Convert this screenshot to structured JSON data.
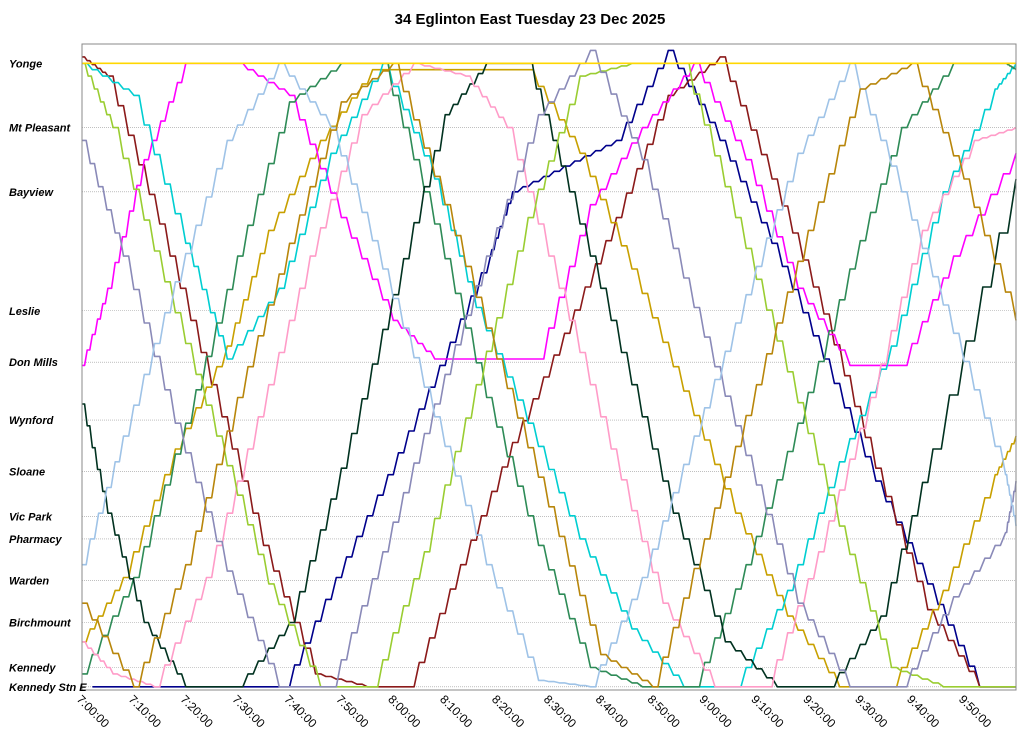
{
  "chart_data": {
    "type": "line",
    "title": "34 Eglinton East Tuesday 23 Dec 2025",
    "xlabel": "",
    "ylabel": "",
    "x_ticks": [
      "7:00:00",
      "7:10:00",
      "7:20:00",
      "7:30:00",
      "7:40:00",
      "7:50:00",
      "8:00:00",
      "8:10:00",
      "8:20:00",
      "8:30:00",
      "8:40:00",
      "8:50:00",
      "9:00:00",
      "9:10:00",
      "9:20:00",
      "9:30:00",
      "9:40:00",
      "9:50:00"
    ],
    "xlim": [
      "7:00:00",
      "10:00:00"
    ],
    "stops": [
      {
        "name": "Yonge",
        "dist": 0.0
      },
      {
        "name": "Mt Pleasant",
        "dist": 1.0
      },
      {
        "name": "Bayview",
        "dist": 2.0
      },
      {
        "name": "Leslie",
        "dist": 3.85
      },
      {
        "name": "Don Mills",
        "dist": 4.65
      },
      {
        "name": "Wynford",
        "dist": 5.55
      },
      {
        "name": "Sloane",
        "dist": 6.35
      },
      {
        "name": "Vic Park",
        "dist": 7.05
      },
      {
        "name": "Pharmacy",
        "dist": 7.4
      },
      {
        "name": "Warden",
        "dist": 8.05
      },
      {
        "name": "Birchmount",
        "dist": 8.7
      },
      {
        "name": "Kennedy",
        "dist": 9.4
      },
      {
        "name": "Kennedy Stn E",
        "dist": 9.7
      }
    ],
    "ylim": [
      9.75,
      -0.3
    ],
    "grid": true,
    "legend": "none",
    "series": [
      {
        "color": "#00008b",
        "x": [
          "7:02",
          "7:12",
          "7:22",
          "7:32",
          "7:39",
          "7:49",
          "7:59",
          "8:09",
          "8:19",
          "8:23",
          "8:33",
          "8:43",
          "8:53",
          "9:03",
          "9:13",
          "9:23",
          "9:33",
          "9:43",
          "9:53",
          "10:00"
        ],
        "y": [
          9.7,
          9.7,
          9.7,
          9.7,
          9.7,
          8.0,
          6.4,
          4.7,
          2.9,
          2.0,
          1.6,
          1.2,
          -0.2,
          1.2,
          2.8,
          4.6,
          6.5,
          8.1,
          9.7,
          9.7
        ]
      },
      {
        "color": "#8b1a1a",
        "x": [
          "7:00",
          "7:05",
          "7:15",
          "7:25",
          "7:35",
          "7:45",
          "7:55",
          "8:03",
          "8:13",
          "8:23",
          "8:33",
          "8:43",
          "8:53",
          "9:03",
          "9:13",
          "9:23",
          "9:33",
          "9:43",
          "9:53",
          "10:00"
        ],
        "y": [
          -0.1,
          0.2,
          2.5,
          5.0,
          7.5,
          9.5,
          9.7,
          9.7,
          7.8,
          5.9,
          4.2,
          2.4,
          0.5,
          -0.1,
          1.8,
          3.9,
          6.3,
          8.5,
          9.7,
          9.7
        ]
      },
      {
        "color": "#c8a000",
        "x": [
          "7:00",
          "7:08",
          "7:18",
          "7:28",
          "7:36",
          "7:46",
          "7:56",
          "8:06",
          "8:16",
          "8:26",
          "8:36",
          "8:46",
          "8:56",
          "9:06",
          "9:16",
          "9:26",
          "9:36",
          "9:46",
          "9:56",
          "10:00"
        ],
        "y": [
          9.0,
          8.0,
          6.0,
          4.4,
          2.6,
          1.2,
          0.1,
          0.1,
          0.1,
          0.1,
          1.4,
          3.2,
          5.1,
          7.0,
          8.6,
          9.7,
          9.7,
          8.2,
          6.4,
          5.8
        ]
      },
      {
        "color": "#ff00ff",
        "x": [
          "7:00",
          "7:05",
          "7:12",
          "7:20",
          "7:30",
          "7:40",
          "7:50",
          "8:00",
          "8:08",
          "8:18",
          "8:28",
          "8:38",
          "8:48",
          "8:58",
          "9:08",
          "9:18",
          "9:28",
          "9:38",
          "9:48",
          "10:00"
        ],
        "y": [
          4.7,
          3.5,
          1.5,
          0.0,
          0.0,
          0.5,
          2.4,
          4.0,
          4.6,
          4.6,
          4.6,
          2.2,
          1.0,
          0.0,
          1.5,
          3.5,
          4.7,
          4.7,
          3.0,
          1.4
        ]
      },
      {
        "color": "#00ced1",
        "x": [
          "7:00",
          "7:10",
          "7:20",
          "7:28",
          "7:38",
          "7:48",
          "7:58",
          "8:08",
          "8:16",
          "8:26",
          "8:36",
          "8:46",
          "8:56",
          "9:06",
          "9:16",
          "9:26",
          "9:36",
          "9:46",
          "9:56",
          "10:00"
        ],
        "y": [
          0.0,
          0.5,
          2.8,
          4.6,
          3.5,
          1.4,
          0.0,
          1.8,
          3.8,
          5.6,
          7.4,
          8.8,
          9.7,
          9.7,
          8.2,
          6.2,
          4.4,
          2.0,
          0.4,
          0.0
        ]
      },
      {
        "color": "#2e8b57",
        "x": [
          "7:00",
          "7:10",
          "7:20",
          "7:30",
          "7:40",
          "7:50",
          "7:58",
          "8:08",
          "8:18",
          "8:28",
          "8:38",
          "8:48",
          "8:58",
          "9:08",
          "9:18",
          "9:28",
          "9:38",
          "9:48",
          "9:58",
          "10:00"
        ],
        "y": [
          9.5,
          8.0,
          5.6,
          3.0,
          0.6,
          0.0,
          0.0,
          2.5,
          5.2,
          7.5,
          9.4,
          9.7,
          9.7,
          7.8,
          5.6,
          3.2,
          1.0,
          0.0,
          0.0,
          0.1
        ]
      },
      {
        "color": "#013220",
        "x": [
          "7:00",
          "7:05",
          "7:12",
          "7:20",
          "7:30",
          "7:40",
          "7:50",
          "8:00",
          "8:10",
          "8:18",
          "8:26",
          "8:34",
          "8:44",
          "8:54",
          "9:04",
          "9:14",
          "9:24",
          "9:34",
          "9:44",
          "10:00"
        ],
        "y": [
          5.3,
          7.0,
          8.7,
          9.7,
          9.7,
          8.7,
          6.3,
          3.6,
          0.8,
          0.0,
          0.0,
          2.0,
          4.5,
          7.0,
          9.0,
          9.7,
          9.7,
          8.6,
          6.0,
          1.8
        ]
      },
      {
        "color": "#ff9cc8",
        "x": [
          "7:00",
          "7:06",
          "7:14",
          "7:24",
          "7:34",
          "7:44",
          "7:54",
          "8:04",
          "8:14",
          "8:22",
          "8:32",
          "8:42",
          "8:52",
          "9:02",
          "9:12",
          "9:22",
          "9:32",
          "9:42",
          "9:52",
          "10:00"
        ],
        "y": [
          9.0,
          9.5,
          9.7,
          8.0,
          5.5,
          3.0,
          0.8,
          0.0,
          0.2,
          1.0,
          3.5,
          6.0,
          8.4,
          9.7,
          9.7,
          7.6,
          5.2,
          2.6,
          1.2,
          1.0
        ]
      },
      {
        "color": "#9acd32",
        "x": [
          "7:00",
          "7:06",
          "7:16",
          "7:26",
          "7:36",
          "7:46",
          "7:56",
          "8:06",
          "8:16",
          "8:26",
          "8:36",
          "8:46",
          "8:56",
          "9:06",
          "9:16",
          "9:26",
          "9:36",
          "9:46",
          "9:56",
          "10:00"
        ],
        "y": [
          0.0,
          1.0,
          3.4,
          5.8,
          8.1,
          9.7,
          9.7,
          7.6,
          5.0,
          2.4,
          0.2,
          0.0,
          0.0,
          2.4,
          4.8,
          7.2,
          9.4,
          9.7,
          9.7,
          9.7
        ]
      },
      {
        "color": "#8a8ab8",
        "x": [
          "7:00",
          "7:08",
          "7:18",
          "7:28",
          "7:38",
          "7:48",
          "7:58",
          "8:08",
          "8:18",
          "8:28",
          "8:38",
          "8:48",
          "8:58",
          "9:08",
          "9:18",
          "9:28",
          "9:38",
          "9:48",
          "9:58",
          "10:00"
        ],
        "y": [
          1.2,
          3.0,
          5.6,
          7.9,
          9.7,
          9.7,
          7.6,
          5.3,
          3.0,
          0.8,
          -0.2,
          1.5,
          3.8,
          6.1,
          8.4,
          9.7,
          9.7,
          8.3,
          7.3,
          6.5
        ]
      },
      {
        "color": "#9fc3e7",
        "x": [
          "7:00",
          "7:08",
          "7:18",
          "7:28",
          "7:38",
          "7:48",
          "7:58",
          "8:08",
          "8:18",
          "8:28",
          "8:38",
          "8:48",
          "8:58",
          "9:08",
          "9:18",
          "9:28",
          "9:38",
          "9:48",
          "9:58",
          "10:00"
        ],
        "y": [
          7.8,
          5.8,
          3.4,
          1.2,
          0.0,
          1.0,
          3.2,
          5.5,
          7.8,
          9.6,
          9.7,
          8.0,
          5.8,
          3.6,
          1.4,
          0.0,
          2.0,
          4.2,
          6.4,
          7.2
        ]
      },
      {
        "color": "#b8860b",
        "x": [
          "7:00",
          "7:10",
          "7:20",
          "7:30",
          "7:40",
          "7:50",
          "8:00",
          "8:10",
          "8:20",
          "8:30",
          "8:40",
          "8:50",
          "9:00",
          "9:10",
          "9:20",
          "9:30",
          "9:40",
          "9:50",
          "10:00"
        ],
        "y": [
          8.4,
          9.7,
          7.8,
          5.2,
          2.8,
          0.6,
          0.0,
          2.2,
          4.6,
          6.9,
          9.2,
          9.7,
          7.4,
          5.0,
          2.6,
          0.4,
          0.0,
          1.8,
          4.0
        ]
      },
      {
        "color": "#ffd700",
        "x": [
          "7:00",
          "7:10",
          "7:20",
          "7:30",
          "7:40",
          "7:50",
          "8:00",
          "8:10",
          "8:20",
          "8:30",
          "8:40",
          "8:50",
          "9:00",
          "9:10",
          "9:20",
          "9:30",
          "9:40",
          "9:50",
          "10:00"
        ],
        "y": [
          0.0,
          0.0,
          0.0,
          0.0,
          0.0,
          0.0,
          0.0,
          0.0,
          0.0,
          0.0,
          0.0,
          0.0,
          0.0,
          0.0,
          0.0,
          0.0,
          0.0,
          0.0,
          0.0
        ]
      }
    ]
  }
}
